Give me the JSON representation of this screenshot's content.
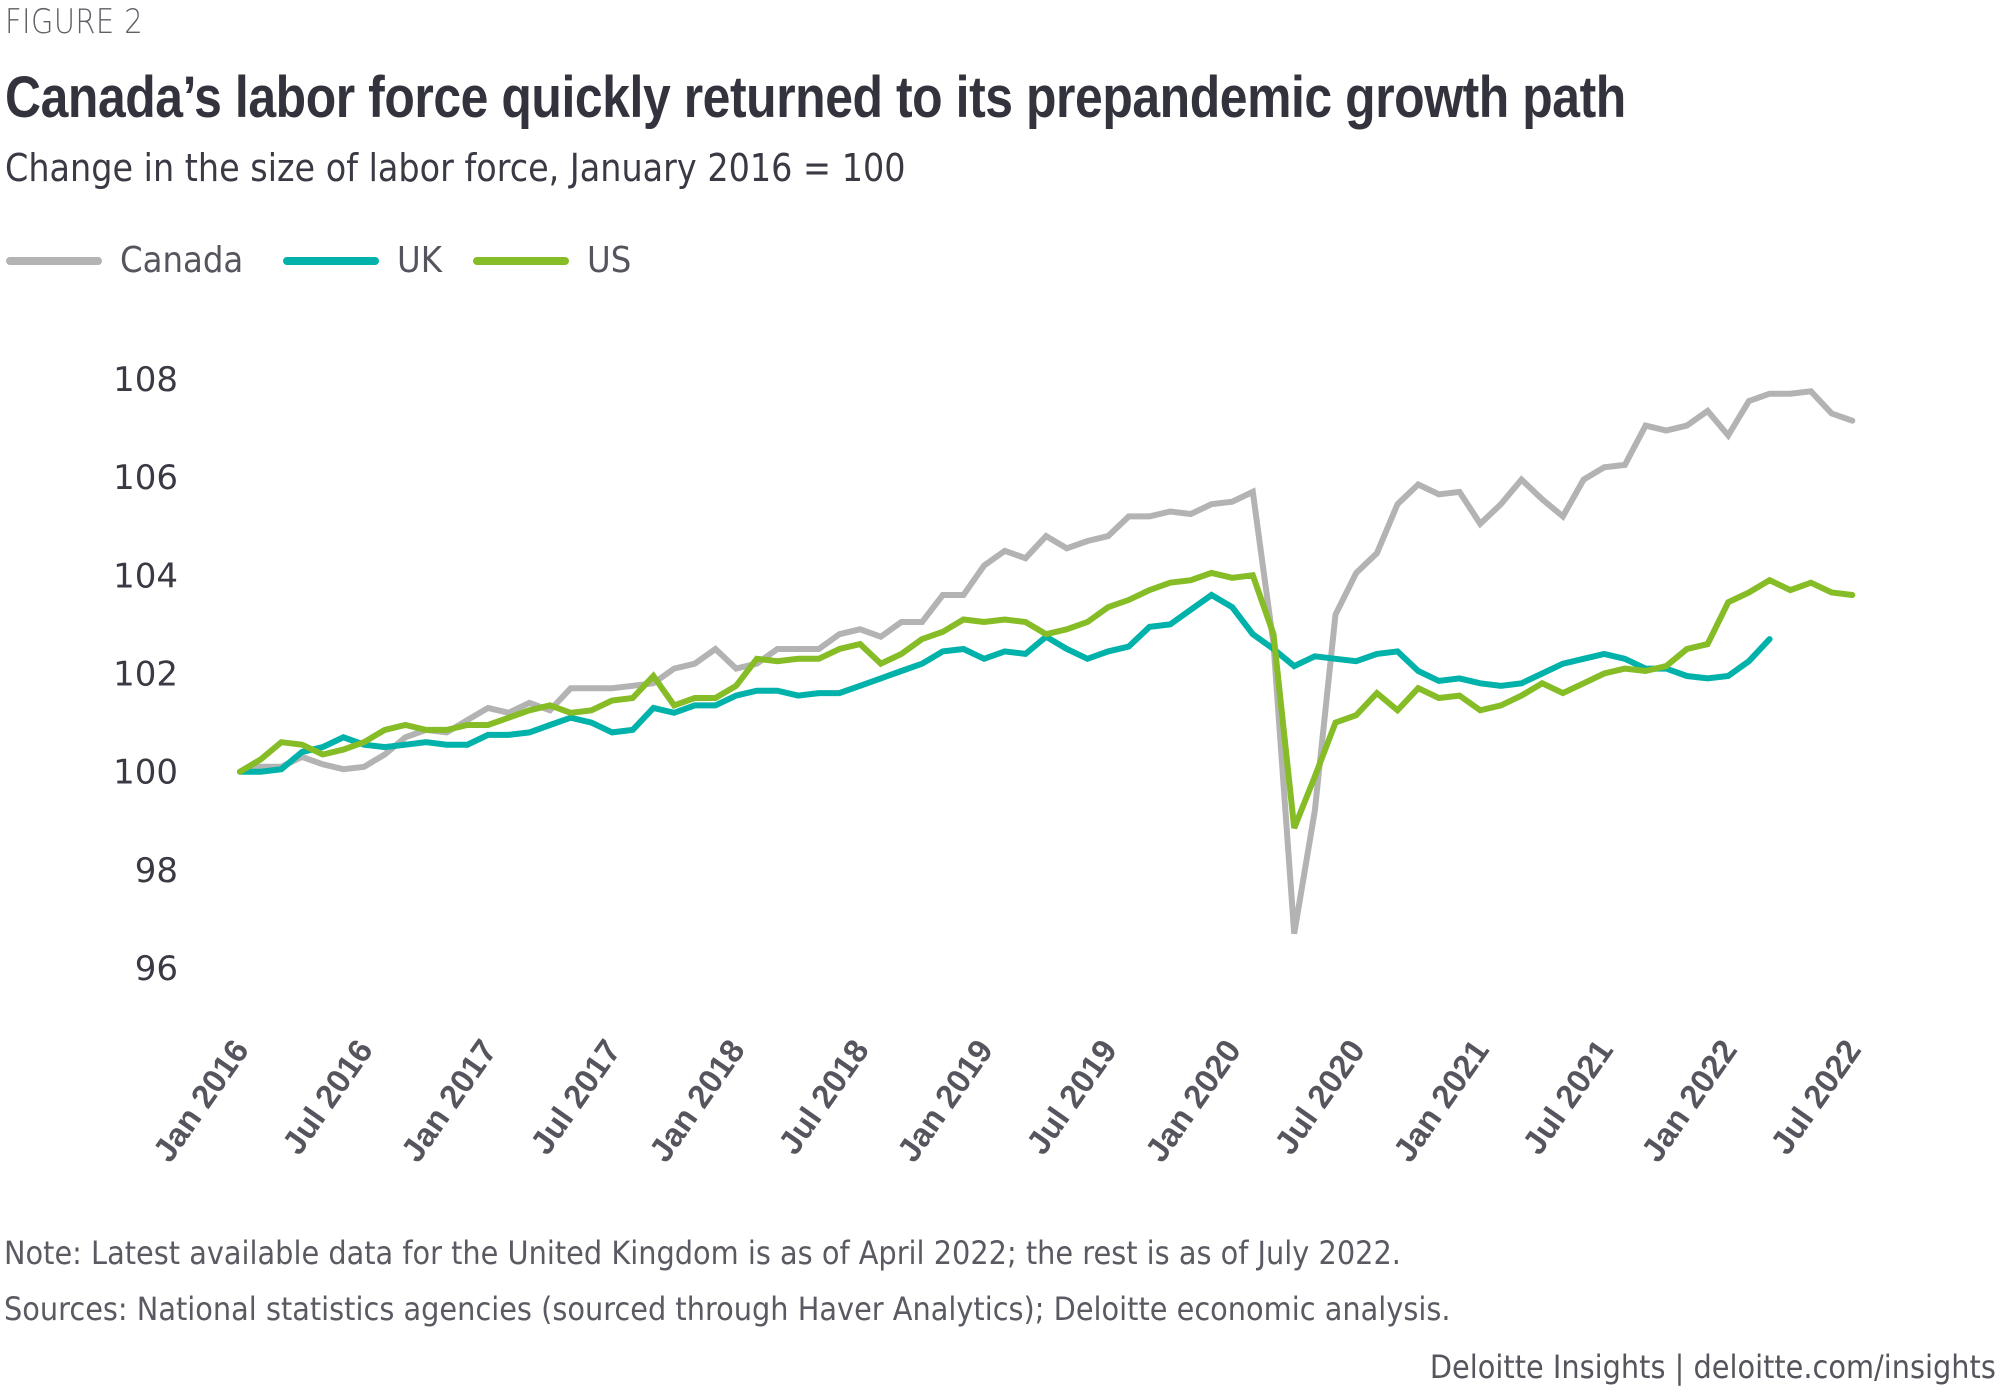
{
  "figure_label": "FIGURE 2",
  "title": "Canada’s labor force quickly returned to its prepandemic growth path",
  "subtitle": "Change in the size of labor force, January 2016 = 100",
  "note": "Note: Latest available data for the United Kingdom is as of April 2022; the rest is as of July 2022.",
  "sources": "Sources: National statistics agencies (sourced through Haver Analytics); Deloitte economic analysis.",
  "credit": "Deloitte Insights | deloitte.com/insights",
  "chart_data": {
    "type": "line",
    "title": "Canada’s labor force quickly returned to its prepandemic growth path",
    "subtitle": "Change in the size of labor force, January 2016 = 100",
    "xlabel": "",
    "ylabel": "",
    "x_start": "2016-01",
    "x_frequency": "monthly",
    "x_tick_labels": [
      "Jan 2016",
      "Jul 2016",
      "Jan 2017",
      "Jul 2017",
      "Jan 2018",
      "Jul 2018",
      "Jan 2019",
      "Jul 2019",
      "Jan 2020",
      "Jul 2020",
      "Jan 2021",
      "Jul 2021",
      "Jan 2022",
      "Jul 2022"
    ],
    "y_ticks": [
      96,
      98,
      100,
      102,
      104,
      106,
      108
    ],
    "ylim": [
      96,
      108
    ],
    "grid": false,
    "legend_position": "top-left",
    "series": [
      {
        "name": "Canada",
        "color": "#b3b3b3",
        "values": [
          100,
          100.1,
          100.1,
          100.3,
          100.15,
          100.05,
          100.1,
          100.35,
          100.7,
          100.85,
          100.8,
          101.05,
          101.3,
          101.2,
          101.4,
          101.25,
          101.7,
          101.7,
          101.7,
          101.75,
          101.8,
          102.1,
          102.2,
          102.5,
          102.1,
          102.2,
          102.5,
          102.5,
          102.5,
          102.8,
          102.9,
          102.75,
          103.05,
          103.05,
          103.6,
          103.6,
          104.2,
          104.5,
          104.35,
          104.8,
          104.55,
          104.7,
          104.8,
          105.2,
          105.2,
          105.3,
          105.25,
          105.45,
          105.5,
          105.7,
          102.6,
          96.7,
          99.2,
          103.2,
          104.05,
          104.45,
          105.45,
          105.85,
          105.65,
          105.7,
          105.05,
          105.45,
          105.95,
          105.55,
          105.2,
          105.95,
          106.2,
          106.25,
          107.05,
          106.95,
          107.05,
          107.35,
          106.85,
          107.55,
          107.7,
          107.7,
          107.75,
          107.3,
          107.15
        ]
      },
      {
        "name": "UK",
        "color": "#00b2a9",
        "values": [
          100,
          100,
          100.05,
          100.4,
          100.5,
          100.7,
          100.55,
          100.5,
          100.55,
          100.6,
          100.55,
          100.55,
          100.75,
          100.75,
          100.8,
          100.95,
          101.1,
          101.0,
          100.8,
          100.85,
          101.3,
          101.2,
          101.35,
          101.35,
          101.55,
          101.65,
          101.65,
          101.55,
          101.6,
          101.6,
          101.75,
          101.9,
          102.05,
          102.2,
          102.45,
          102.5,
          102.3,
          102.45,
          102.4,
          102.75,
          102.5,
          102.3,
          102.45,
          102.55,
          102.95,
          103.0,
          103.3,
          103.6,
          103.35,
          102.8,
          102.5,
          102.15,
          102.35,
          102.3,
          102.25,
          102.4,
          102.45,
          102.05,
          101.85,
          101.9,
          101.8,
          101.75,
          101.8,
          102.0,
          102.2,
          102.3,
          102.4,
          102.3,
          102.1,
          102.1,
          101.95,
          101.9,
          101.95,
          102.25,
          102.7
        ]
      },
      {
        "name": "US",
        "color": "#86bc25",
        "values": [
          100,
          100.25,
          100.6,
          100.55,
          100.35,
          100.45,
          100.6,
          100.85,
          100.95,
          100.85,
          100.85,
          100.95,
          100.95,
          101.1,
          101.25,
          101.35,
          101.2,
          101.25,
          101.45,
          101.5,
          101.95,
          101.35,
          101.5,
          101.5,
          101.75,
          102.3,
          102.25,
          102.3,
          102.3,
          102.5,
          102.6,
          102.2,
          102.4,
          102.7,
          102.85,
          103.1,
          103.05,
          103.1,
          103.05,
          102.8,
          102.9,
          103.05,
          103.35,
          103.5,
          103.7,
          103.85,
          103.9,
          104.05,
          103.95,
          104.0,
          102.8,
          98.85,
          99.9,
          101.0,
          101.15,
          101.6,
          101.25,
          101.7,
          101.5,
          101.55,
          101.25,
          101.35,
          101.55,
          101.8,
          101.6,
          101.8,
          102.0,
          102.1,
          102.05,
          102.15,
          102.5,
          102.6,
          103.45,
          103.65,
          103.9,
          103.7,
          103.85,
          103.65,
          103.6
        ]
      }
    ]
  },
  "legend": [
    {
      "label": "Canada",
      "color": "#b3b3b3"
    },
    {
      "label": "UK",
      "color": "#00b2a9"
    },
    {
      "label": "US",
      "color": "#86bc25"
    }
  ]
}
